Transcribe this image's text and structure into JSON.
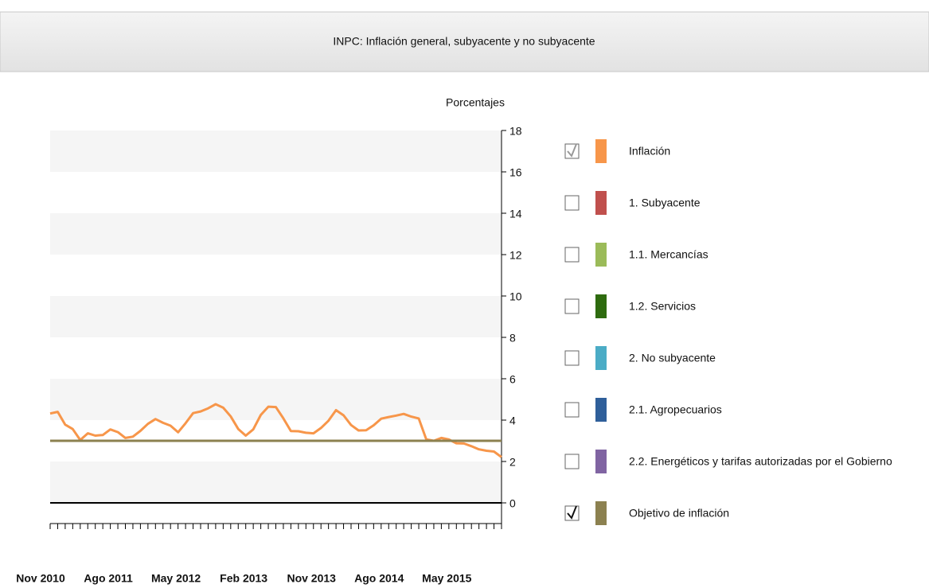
{
  "chart_data": {
    "type": "line",
    "title": "INPC: Inflación general, subyacente y no subyacente",
    "y_label": "Porcentajes",
    "categories": [
      "Nov 2010",
      null,
      null,
      null,
      null,
      null,
      null,
      null,
      null,
      "Ago 2011",
      null,
      null,
      null,
      null,
      null,
      null,
      null,
      null,
      "May 2012",
      null,
      null,
      null,
      null,
      null,
      null,
      null,
      null,
      "Feb 2013",
      null,
      null,
      null,
      null,
      null,
      null,
      null,
      null,
      "Nov 2013",
      null,
      null,
      null,
      null,
      null,
      null,
      null,
      null,
      "Ago 2014",
      null,
      null,
      null,
      null,
      null,
      null,
      null,
      null,
      "May 2015",
      null,
      null,
      null,
      null,
      null,
      null
    ],
    "ylim": [
      -1,
      18
    ],
    "yticks": [
      0,
      2,
      4,
      6,
      8,
      10,
      12,
      14,
      16,
      18
    ],
    "grid": "bands",
    "legend": "right",
    "series": [
      {
        "name": "Inflación",
        "color": "#f7964a",
        "checked": true,
        "values": [
          4.32,
          4.4,
          3.78,
          3.57,
          3.04,
          3.36,
          3.25,
          3.28,
          3.55,
          3.42,
          3.14,
          3.2,
          3.48,
          3.82,
          4.05,
          3.87,
          3.73,
          3.41,
          3.85,
          4.34,
          4.42,
          4.57,
          4.77,
          4.6,
          4.18,
          3.57,
          3.25,
          3.55,
          4.25,
          4.65,
          4.63,
          4.09,
          3.47,
          3.46,
          3.39,
          3.36,
          3.62,
          3.97,
          4.48,
          4.23,
          3.76,
          3.5,
          3.51,
          3.75,
          4.07,
          4.15,
          4.22,
          4.3,
          4.17,
          4.08,
          3.07,
          3.0,
          3.14,
          3.06,
          2.88,
          2.87,
          2.74,
          2.59,
          2.52,
          2.48,
          2.21
        ]
      },
      {
        "name": "1. Subyacente",
        "color": "#c0504d",
        "checked": false
      },
      {
        "name": "1.1. Mercancías",
        "color": "#9bbb59",
        "checked": false
      },
      {
        "name": "1.2. Servicios",
        "color": "#2e6b0f",
        "checked": false
      },
      {
        "name": "2. No subyacente",
        "color": "#4bacc6",
        "checked": false
      },
      {
        "name": "2.1. Agropecuarios",
        "color": "#2f5f9a",
        "checked": false
      },
      {
        "name": "2.2. Energéticos y tarifas autorizadas por el Gobierno",
        "color": "#8064a2",
        "checked": false
      },
      {
        "name": "Objetivo de inflación",
        "color": "#8c8150",
        "checked": true,
        "values": [
          3,
          3,
          3,
          3,
          3,
          3,
          3,
          3,
          3,
          3,
          3,
          3,
          3,
          3,
          3,
          3,
          3,
          3,
          3,
          3,
          3,
          3,
          3,
          3,
          3,
          3,
          3,
          3,
          3,
          3,
          3,
          3,
          3,
          3,
          3,
          3,
          3,
          3,
          3,
          3,
          3,
          3,
          3,
          3,
          3,
          3,
          3,
          3,
          3,
          3,
          3,
          3,
          3,
          3,
          3,
          3,
          3,
          3,
          3,
          3,
          3
        ]
      }
    ]
  }
}
